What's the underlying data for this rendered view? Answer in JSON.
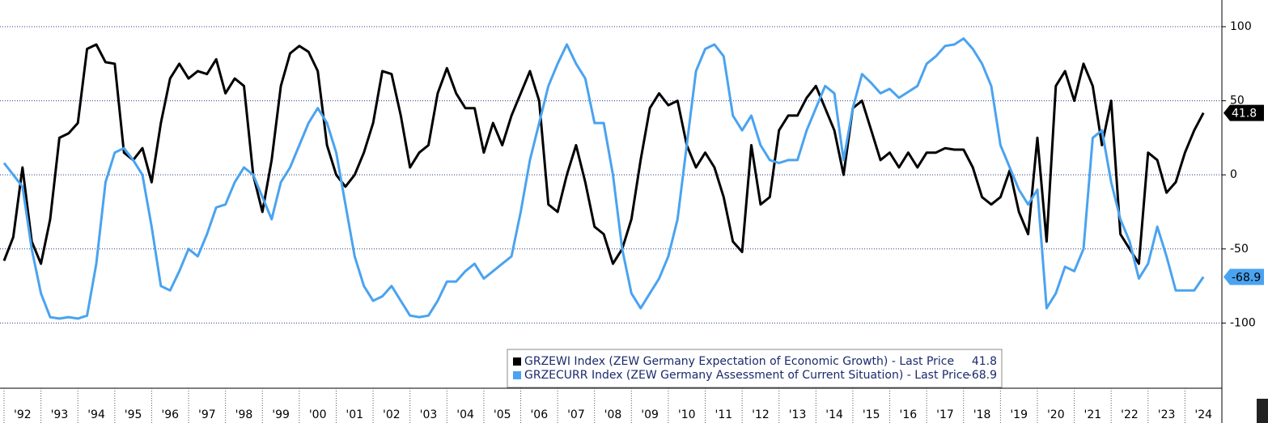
{
  "chart_data": {
    "type": "line",
    "x": [
      1992,
      1992.25,
      1992.5,
      1992.75,
      1993,
      1993.25,
      1993.5,
      1993.75,
      1994,
      1994.25,
      1994.5,
      1994.75,
      1995,
      1995.25,
      1995.5,
      1995.75,
      1996,
      1996.25,
      1996.5,
      1996.75,
      1997,
      1997.25,
      1997.5,
      1997.75,
      1998,
      1998.25,
      1998.5,
      1998.75,
      1999,
      1999.25,
      1999.5,
      1999.75,
      2000,
      2000.25,
      2000.5,
      2000.75,
      2001,
      2001.25,
      2001.5,
      2001.75,
      2002,
      2002.25,
      2002.5,
      2002.75,
      2003,
      2003.25,
      2003.5,
      2003.75,
      2004,
      2004.25,
      2004.5,
      2004.75,
      2005,
      2005.25,
      2005.5,
      2005.75,
      2006,
      2006.25,
      2006.5,
      2006.75,
      2007,
      2007.25,
      2007.5,
      2007.75,
      2008,
      2008.25,
      2008.5,
      2008.75,
      2009,
      2009.25,
      2009.5,
      2009.75,
      2010,
      2010.25,
      2010.5,
      2010.75,
      2011,
      2011.25,
      2011.5,
      2011.75,
      2012,
      2012.25,
      2012.5,
      2012.75,
      2013,
      2013.25,
      2013.5,
      2013.75,
      2014,
      2014.25,
      2014.5,
      2014.75,
      2015,
      2015.25,
      2015.5,
      2015.75,
      2016,
      2016.25,
      2016.5,
      2016.75,
      2017,
      2017.25,
      2017.5,
      2017.75,
      2018,
      2018.25,
      2018.5,
      2018.75,
      2019,
      2019.25,
      2019.5,
      2019.75,
      2020,
      2020.25,
      2020.5,
      2020.75,
      2021,
      2021.25,
      2021.5,
      2021.75,
      2022,
      2022.25,
      2022.5,
      2022.75,
      2023,
      2023.25,
      2023.5,
      2023.75,
      2024,
      2024.25,
      2024.5
    ],
    "series": [
      {
        "name": "GRZEWI Index (ZEW Germany Expectation of Economic Growth) - Last Price",
        "color": "#000000",
        "values": [
          -58,
          -42,
          5,
          -45,
          -60,
          -30,
          25,
          28,
          35,
          85,
          88,
          76,
          75,
          15,
          10,
          18,
          -5,
          35,
          65,
          75,
          65,
          70,
          68,
          78,
          55,
          65,
          60,
          0,
          -25,
          10,
          60,
          82,
          87,
          83,
          70,
          20,
          0,
          -8,
          0,
          15,
          35,
          70,
          68,
          40,
          5,
          15,
          20,
          55,
          72,
          55,
          45,
          45,
          15,
          35,
          20,
          40,
          55,
          70,
          50,
          -20,
          -25,
          0,
          20,
          -5,
          -35,
          -40,
          -60,
          -50,
          -30,
          10,
          45,
          55,
          47,
          50,
          20,
          5,
          15,
          5,
          -15,
          -45,
          -52,
          20,
          -20,
          -15,
          30,
          40,
          40,
          52,
          60,
          45,
          30,
          0,
          45,
          50,
          30,
          10,
          15,
          5,
          15,
          5,
          15,
          15,
          18,
          17,
          17,
          5,
          -15,
          -20,
          -15,
          3,
          -25,
          -40,
          25,
          -45,
          60,
          70,
          50,
          75,
          60,
          20,
          50,
          -40,
          -50,
          -60,
          15,
          10,
          -12,
          -5,
          15,
          30,
          41.8
        ]
      },
      {
        "name": "GRZECURR Index (ZEW Germany Assessment of Current Situation) - Last Price",
        "color": "#4aa3f0",
        "values": [
          8,
          0,
          -8,
          -50,
          -80,
          -96,
          -97,
          -96,
          -97,
          -95,
          -60,
          -5,
          15,
          18,
          10,
          0,
          -35,
          -75,
          -78,
          -65,
          -50,
          -55,
          -40,
          -22,
          -20,
          -5,
          5,
          0,
          -15,
          -30,
          -5,
          5,
          20,
          35,
          45,
          35,
          15,
          -20,
          -55,
          -75,
          -85,
          -82,
          -75,
          -85,
          -95,
          -96,
          -95,
          -85,
          -72,
          -72,
          -65,
          -60,
          -70,
          -65,
          -60,
          -55,
          -25,
          10,
          35,
          60,
          75,
          88,
          75,
          65,
          35,
          35,
          0,
          -50,
          -80,
          -90,
          -80,
          -70,
          -55,
          -30,
          20,
          70,
          85,
          88,
          80,
          40,
          30,
          40,
          20,
          10,
          8,
          10,
          10,
          30,
          45,
          60,
          55,
          10,
          45,
          68,
          62,
          55,
          58,
          52,
          56,
          60,
          75,
          80,
          87,
          88,
          92,
          85,
          75,
          60,
          20,
          5,
          -10,
          -20,
          -10,
          -90,
          -80,
          -62,
          -65,
          -50,
          25,
          30,
          -5,
          -30,
          -45,
          -70,
          -60,
          -35,
          -55,
          -78,
          -78,
          -78,
          -68.9
        ]
      }
    ],
    "xlim": [
      1991.89,
      2025.0
    ],
    "xticks": [
      {
        "value": 1992,
        "label": "'92"
      },
      {
        "value": 1993,
        "label": "'93"
      },
      {
        "value": 1994,
        "label": "'94"
      },
      {
        "value": 1995,
        "label": "'95"
      },
      {
        "value": 1996,
        "label": "'96"
      },
      {
        "value": 1997,
        "label": "'97"
      },
      {
        "value": 1998,
        "label": "'98"
      },
      {
        "value": 1999,
        "label": "'99"
      },
      {
        "value": 2000,
        "label": "'00"
      },
      {
        "value": 2001,
        "label": "'01"
      },
      {
        "value": 2002,
        "label": "'02"
      },
      {
        "value": 2003,
        "label": "'03"
      },
      {
        "value": 2004,
        "label": "'04"
      },
      {
        "value": 2005,
        "label": "'05"
      },
      {
        "value": 2006,
        "label": "'06"
      },
      {
        "value": 2007,
        "label": "'07"
      },
      {
        "value": 2008,
        "label": "'08"
      },
      {
        "value": 2009,
        "label": "'09"
      },
      {
        "value": 2010,
        "label": "'10"
      },
      {
        "value": 2011,
        "label": "'11"
      },
      {
        "value": 2012,
        "label": "'12"
      },
      {
        "value": 2013,
        "label": "'13"
      },
      {
        "value": 2014,
        "label": "'14"
      },
      {
        "value": 2015,
        "label": "'15"
      },
      {
        "value": 2016,
        "label": "'16"
      },
      {
        "value": 2017,
        "label": "'17"
      },
      {
        "value": 2018,
        "label": "'18"
      },
      {
        "value": 2019,
        "label": "'19"
      },
      {
        "value": 2020,
        "label": "'20"
      },
      {
        "value": 2021,
        "label": "'21"
      },
      {
        "value": 2022,
        "label": "'22"
      },
      {
        "value": 2023,
        "label": "'23"
      },
      {
        "value": 2024,
        "label": "'24"
      }
    ],
    "ylim": [
      -144,
      118
    ],
    "yticks": [
      100,
      50,
      0,
      -50,
      -100
    ],
    "grid": true
  }
}
